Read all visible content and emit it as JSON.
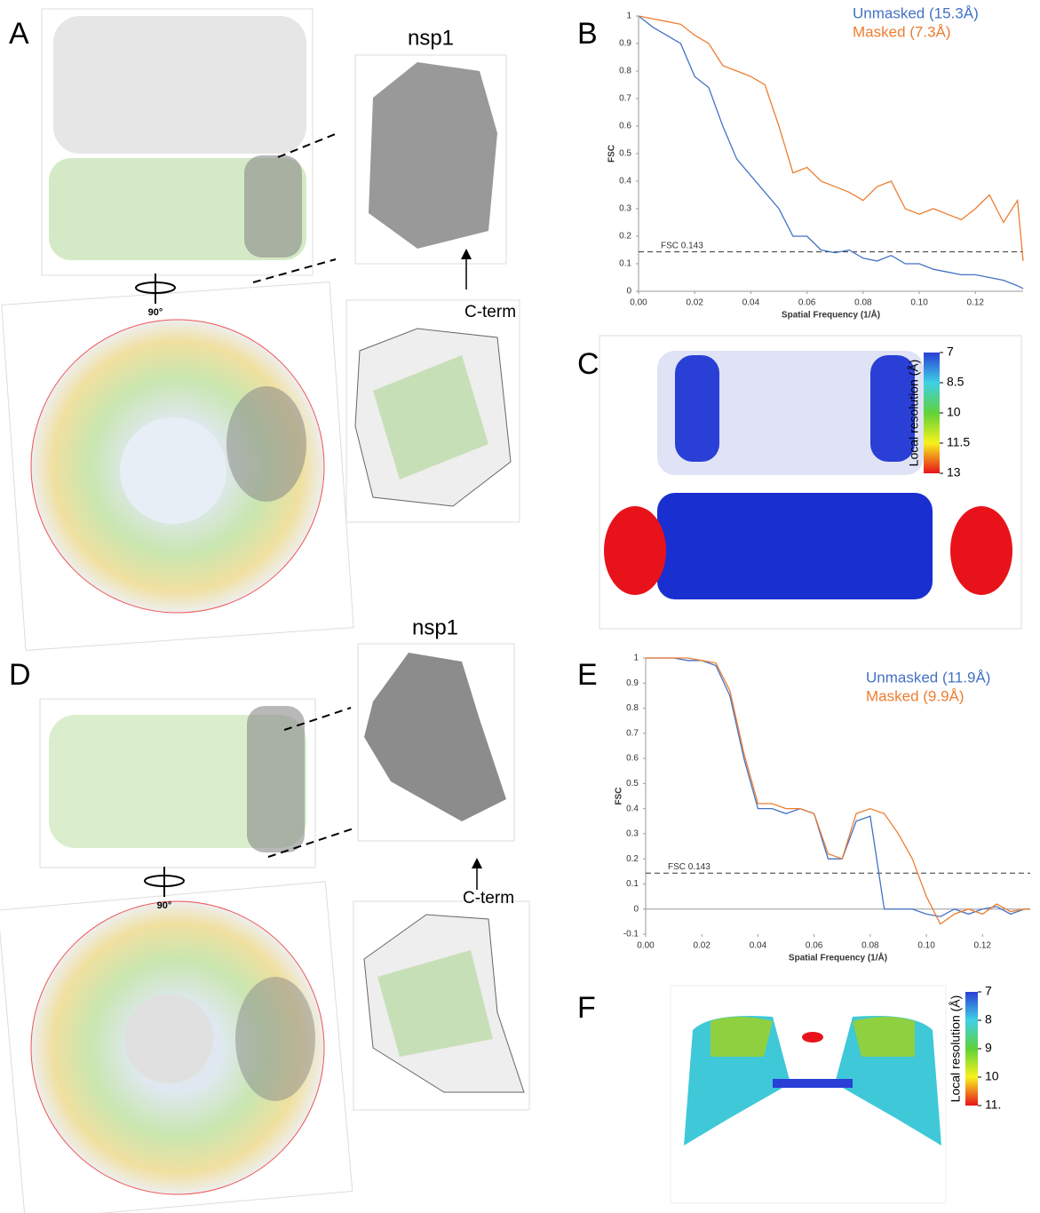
{
  "panels": [
    "A",
    "B",
    "C",
    "D",
    "E",
    "F"
  ],
  "labels": {
    "nsp1_top": "nsp1",
    "nsp1_bottom": "nsp1",
    "cterm_top": "C-term",
    "cterm_bottom": "C-term",
    "rotation_top": "90°",
    "rotation_bottom": "90°"
  },
  "colorbars": [
    {
      "title": "Local resolution (Å)",
      "lim": [
        7,
        13
      ],
      "ticks": [
        7,
        8.5,
        10,
        11.5,
        13
      ]
    },
    {
      "title": "Local resolution (Å)",
      "lim": [
        7,
        11
      ],
      "ticks": [
        7,
        8,
        9,
        10,
        {
          "value": 11,
          "label": "11."
        }
      ]
    }
  ],
  "chart_data": [
    {
      "type": "line",
      "x_label": "Spatial Frequency (1/Å)",
      "y_label": "FSC",
      "threshold": {
        "value": 0.143,
        "label": "FSC 0.143"
      },
      "x": [
        0,
        0.005,
        0.01,
        0.015,
        0.02,
        0.025,
        0.03,
        0.035,
        0.04,
        0.045,
        0.05,
        0.055,
        0.06,
        0.065,
        0.07,
        0.075,
        0.08,
        0.085,
        0.09,
        0.095,
        0.1,
        0.105,
        0.11,
        0.115,
        0.12,
        0.125,
        0.13,
        0.135,
        0.137
      ],
      "series": [
        {
          "name": "Unmasked (15.3Å)",
          "color": "#4472c4",
          "values": [
            1,
            0.96,
            0.93,
            0.9,
            0.78,
            0.74,
            0.6,
            0.48,
            0.42,
            0.36,
            0.3,
            0.2,
            0.2,
            0.15,
            0.14,
            0.15,
            0.12,
            0.11,
            0.13,
            0.1,
            0.1,
            0.08,
            0.07,
            0.06,
            0.06,
            0.05,
            0.04,
            0.02,
            0.01
          ]
        },
        {
          "name": "Masked (7.3Å)",
          "color": "#ed7d31",
          "values": [
            1,
            0.99,
            0.98,
            0.97,
            0.93,
            0.9,
            0.82,
            0.8,
            0.78,
            0.75,
            0.6,
            0.43,
            0.45,
            0.4,
            0.38,
            0.36,
            0.33,
            0.38,
            0.4,
            0.3,
            0.28,
            0.3,
            0.28,
            0.26,
            0.3,
            0.35,
            0.25,
            0.33,
            0.11
          ]
        }
      ],
      "xlim": [
        0,
        0.137
      ],
      "ylim": [
        0,
        1
      ],
      "xticks": [
        {
          "value": 0,
          "label": "0.00"
        },
        {
          "value": 0.02,
          "label": "0.02"
        },
        {
          "value": 0.04,
          "label": "0.04"
        },
        {
          "value": 0.06,
          "label": "0.06"
        },
        {
          "value": 0.08,
          "label": "0.08"
        },
        {
          "value": 0.1,
          "label": "0.10"
        },
        {
          "value": 0.12,
          "label": "0.12"
        }
      ],
      "yticks": [
        0,
        0.1,
        0.2,
        0.3,
        0.4,
        0.5,
        0.6,
        0.7,
        0.8,
        0.9,
        1
      ]
    },
    {
      "type": "line",
      "x_label": "Spatial Frequency (1/Å)",
      "y_label": "FSC",
      "threshold": {
        "value": 0.143,
        "label": "FSC 0.143"
      },
      "x": [
        0,
        0.005,
        0.01,
        0.015,
        0.02,
        0.025,
        0.03,
        0.035,
        0.04,
        0.045,
        0.05,
        0.055,
        0.06,
        0.065,
        0.07,
        0.075,
        0.08,
        0.085,
        0.09,
        0.095,
        0.1,
        0.105,
        0.11,
        0.115,
        0.12,
        0.125,
        0.13,
        0.135,
        0.137
      ],
      "series": [
        {
          "name": "Unmasked (11.9Å)",
          "color": "#4472c4",
          "values": [
            1,
            1,
            1,
            0.99,
            0.99,
            0.97,
            0.85,
            0.6,
            0.4,
            0.4,
            0.38,
            0.4,
            0.38,
            0.2,
            0.2,
            0.35,
            0.37,
            0,
            0,
            0,
            -0.02,
            -0.03,
            0,
            -0.02,
            0,
            0.01,
            -0.02,
            0,
            0
          ]
        },
        {
          "name": "Masked (9.9Å)",
          "color": "#ed7d31",
          "values": [
            1,
            1,
            1,
            1,
            0.99,
            0.98,
            0.87,
            0.62,
            0.42,
            0.42,
            0.4,
            0.4,
            0.38,
            0.22,
            0.2,
            0.38,
            0.4,
            0.38,
            0.3,
            0.2,
            0.05,
            -0.06,
            -0.02,
            0,
            -0.02,
            0.02,
            -0.01,
            0,
            0
          ]
        }
      ],
      "xlim": [
        0,
        0.137
      ],
      "ylim": [
        -0.1,
        1
      ],
      "xticks": [
        {
          "value": 0,
          "label": "0.00"
        },
        {
          "value": 0.02,
          "label": "0.02"
        },
        {
          "value": 0.04,
          "label": "0.04"
        },
        {
          "value": 0.06,
          "label": "0.06"
        },
        {
          "value": 0.08,
          "label": "0.08"
        },
        {
          "value": 0.1,
          "label": "0.10"
        },
        {
          "value": 0.12,
          "label": "0.12"
        }
      ],
      "yticks": [
        -0.1,
        0,
        0.1,
        0.2,
        0.3,
        0.4,
        0.5,
        0.6,
        0.7,
        0.8,
        0.9,
        1
      ]
    }
  ]
}
